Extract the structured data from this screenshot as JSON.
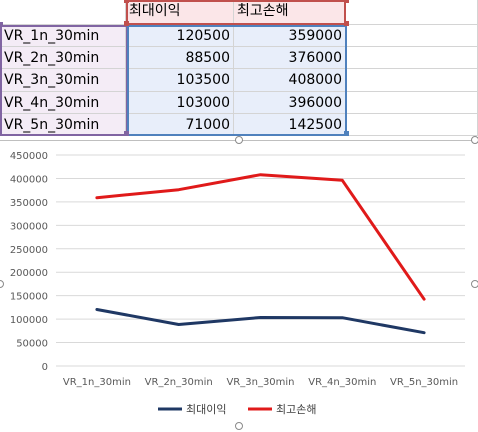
{
  "sheet": {
    "headers": [
      "최대이익",
      "최고손해"
    ],
    "rows": [
      {
        "label": "VR_1n_30min",
        "v1": "120500",
        "v2": "359000"
      },
      {
        "label": "VR_2n_30min",
        "v1": "88500",
        "v2": "376000"
      },
      {
        "label": "VR_3n_30min",
        "v1": "103500",
        "v2": "408000"
      },
      {
        "label": "VR_4n_30min",
        "v1": "103000",
        "v2": "396000"
      },
      {
        "label": "VR_5n_30min",
        "v1": "71000",
        "v2": "142500"
      }
    ]
  },
  "colors": {
    "series1": "#1f3864",
    "series2": "#e01a1a",
    "header_fill": "#fbe6e8",
    "label_fill": "#f4ecf6",
    "value_fill": "#e8eefa",
    "header_border": "#c0504d",
    "label_border": "#8064a2",
    "value_border": "#4f81bd"
  },
  "chart_data": {
    "type": "line",
    "categories": [
      "VR_1n_30min",
      "VR_2n_30min",
      "VR_3n_30min",
      "VR_4n_30min",
      "VR_5n_30min"
    ],
    "series": [
      {
        "name": "최대이익",
        "values": [
          120500,
          88500,
          103500,
          103000,
          71000
        ]
      },
      {
        "name": "최고손해",
        "values": [
          359000,
          376000,
          408000,
          396000,
          142500
        ]
      }
    ],
    "ylim": [
      0,
      450000
    ],
    "yticks": [
      0,
      50000,
      100000,
      150000,
      200000,
      250000,
      300000,
      350000,
      400000,
      450000
    ],
    "grid": true,
    "legend": "bottom"
  }
}
